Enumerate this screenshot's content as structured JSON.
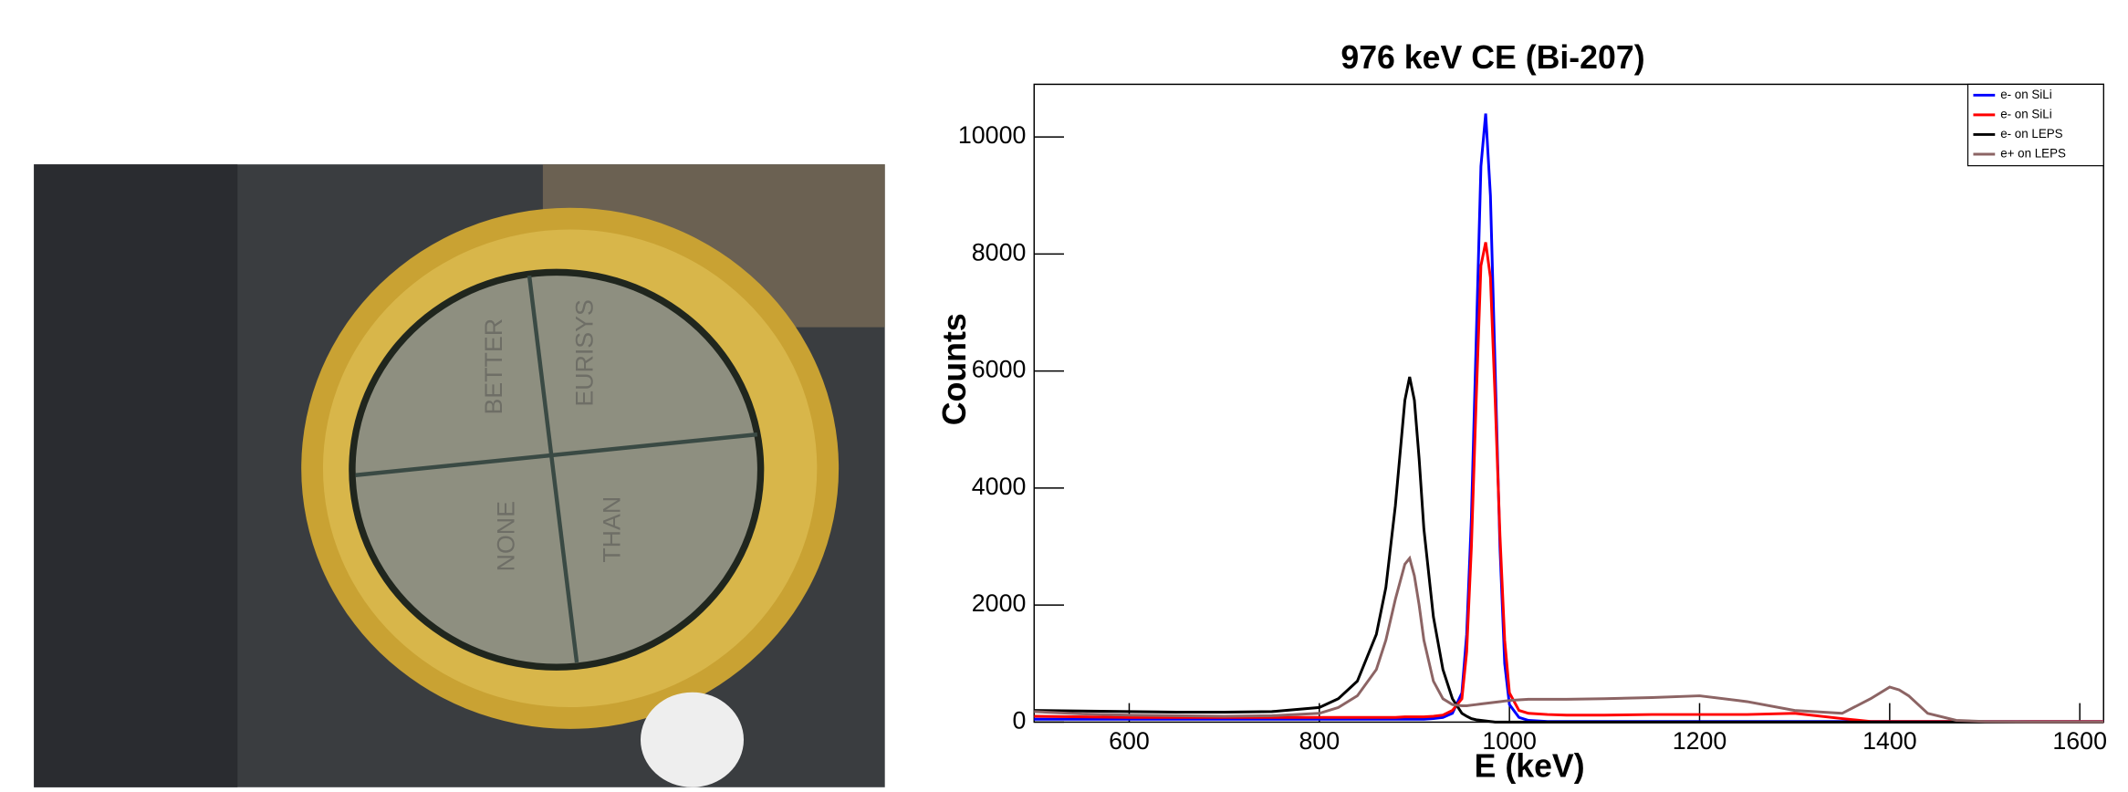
{
  "photo": {
    "labels": [
      "BETTER",
      "EURISYS",
      "NONE",
      "THAN"
    ]
  },
  "chart_data": {
    "type": "line",
    "title": "976 keV CE (Bi-207)",
    "x_label": "E (keV)",
    "y_label": "Counts",
    "x": [
      500,
      550,
      600,
      650,
      700,
      750,
      800,
      820,
      840,
      860,
      870,
      880,
      890,
      895,
      900,
      905,
      910,
      920,
      930,
      940,
      950,
      955,
      960,
      965,
      970,
      975,
      980,
      985,
      990,
      995,
      1000,
      1010,
      1020,
      1040,
      1060,
      1100,
      1150,
      1200,
      1250,
      1300,
      1350,
      1380,
      1400,
      1410,
      1420,
      1440,
      1470,
      1500,
      1550,
      1600,
      1625
    ],
    "series": [
      {
        "name": "e- on SiLi",
        "color": "#0000ff",
        "values": [
          50,
          50,
          50,
          50,
          50,
          50,
          50,
          50,
          50,
          50,
          50,
          50,
          50,
          50,
          50,
          50,
          50,
          60,
          80,
          150,
          500,
          1500,
          3500,
          6500,
          9500,
          10400,
          9000,
          6000,
          3000,
          1000,
          300,
          80,
          30,
          10,
          10,
          10,
          10,
          10,
          10,
          10,
          10,
          10,
          10,
          10,
          10,
          10,
          10,
          10,
          10,
          10,
          10
        ]
      },
      {
        "name": "e- on SiLi",
        "color": "#ff0000",
        "values": [
          100,
          90,
          80,
          80,
          80,
          80,
          80,
          80,
          80,
          80,
          80,
          80,
          90,
          90,
          90,
          90,
          90,
          100,
          120,
          200,
          400,
          1200,
          3000,
          5500,
          7800,
          8200,
          7600,
          5500,
          3200,
          1400,
          500,
          200,
          150,
          130,
          120,
          120,
          130,
          130,
          130,
          150,
          60,
          10,
          10,
          10,
          10,
          10,
          10,
          10,
          10,
          10,
          10
        ]
      },
      {
        "name": "e- on LEPS",
        "color": "#000000",
        "values": [
          200,
          190,
          180,
          170,
          170,
          180,
          250,
          400,
          700,
          1500,
          2300,
          3700,
          5500,
          5900,
          5500,
          4500,
          3300,
          1800,
          900,
          400,
          150,
          100,
          60,
          40,
          30,
          20,
          10,
          0,
          0,
          0,
          0,
          0,
          0,
          0,
          0,
          0,
          0,
          0,
          0,
          0,
          0,
          0,
          0,
          0,
          0,
          0,
          0,
          0,
          0,
          0,
          0
        ]
      },
      {
        "name": "e+ on LEPS",
        "color": "#8c6464",
        "values": [
          180,
          140,
          120,
          110,
          100,
          110,
          150,
          250,
          450,
          900,
          1400,
          2100,
          2700,
          2800,
          2500,
          2000,
          1400,
          700,
          400,
          300,
          280,
          280,
          290,
          300,
          310,
          320,
          330,
          340,
          350,
          360,
          370,
          380,
          390,
          390,
          390,
          400,
          420,
          450,
          350,
          200,
          150,
          400,
          600,
          550,
          450,
          150,
          30,
          10,
          5,
          5,
          5
        ]
      }
    ],
    "xlim": [
      500,
      1625
    ],
    "ylim": [
      0,
      10900
    ],
    "xticks": [
      600,
      800,
      1000,
      1200,
      1400,
      1600
    ],
    "yticks": [
      0,
      2000,
      4000,
      6000,
      8000,
      10000
    ],
    "legend": "top-right"
  }
}
